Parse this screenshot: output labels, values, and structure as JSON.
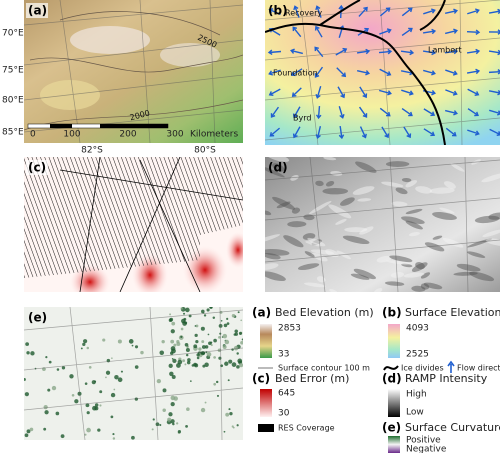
{
  "panels": {
    "a": {
      "label": "(a)",
      "lon_labels": [
        "70°E",
        "75°E",
        "80°E",
        "85°E"
      ],
      "lat_labels": [
        "82°S",
        "80°S"
      ],
      "scale_bar": [
        "0",
        "100",
        "200",
        "300",
        "Kilometers"
      ],
      "contours": [
        "2500",
        "2000"
      ]
    },
    "b": {
      "label": "(b)",
      "places": [
        "Recovery",
        "Lambert",
        "Foundation",
        "Byrd"
      ]
    },
    "c": {
      "label": "(c)"
    },
    "d": {
      "label": "(d)"
    },
    "e": {
      "label": "(e)"
    }
  },
  "legend": [
    {
      "key": "(a)",
      "title": "Bed Elevation (m)",
      "high": "2853",
      "low": "33",
      "extra": [
        "Surface contour 100 m"
      ]
    },
    {
      "key": "(b)",
      "title": "Surface Elevation (m)",
      "high": "4093",
      "low": "2525",
      "extra": [
        "Ice divides",
        "Flow direction"
      ]
    },
    {
      "key": "(c)",
      "title": "Bed Error (m)",
      "high": "645",
      "low": "30",
      "extra": [
        "RES Coverage"
      ]
    },
    {
      "key": "(d)",
      "title": "RAMP Intensity",
      "high": "High",
      "low": "Low"
    },
    {
      "key": "(e)",
      "title": "Surface Curvature",
      "high": "Positive",
      "low": "Negative"
    }
  ]
}
